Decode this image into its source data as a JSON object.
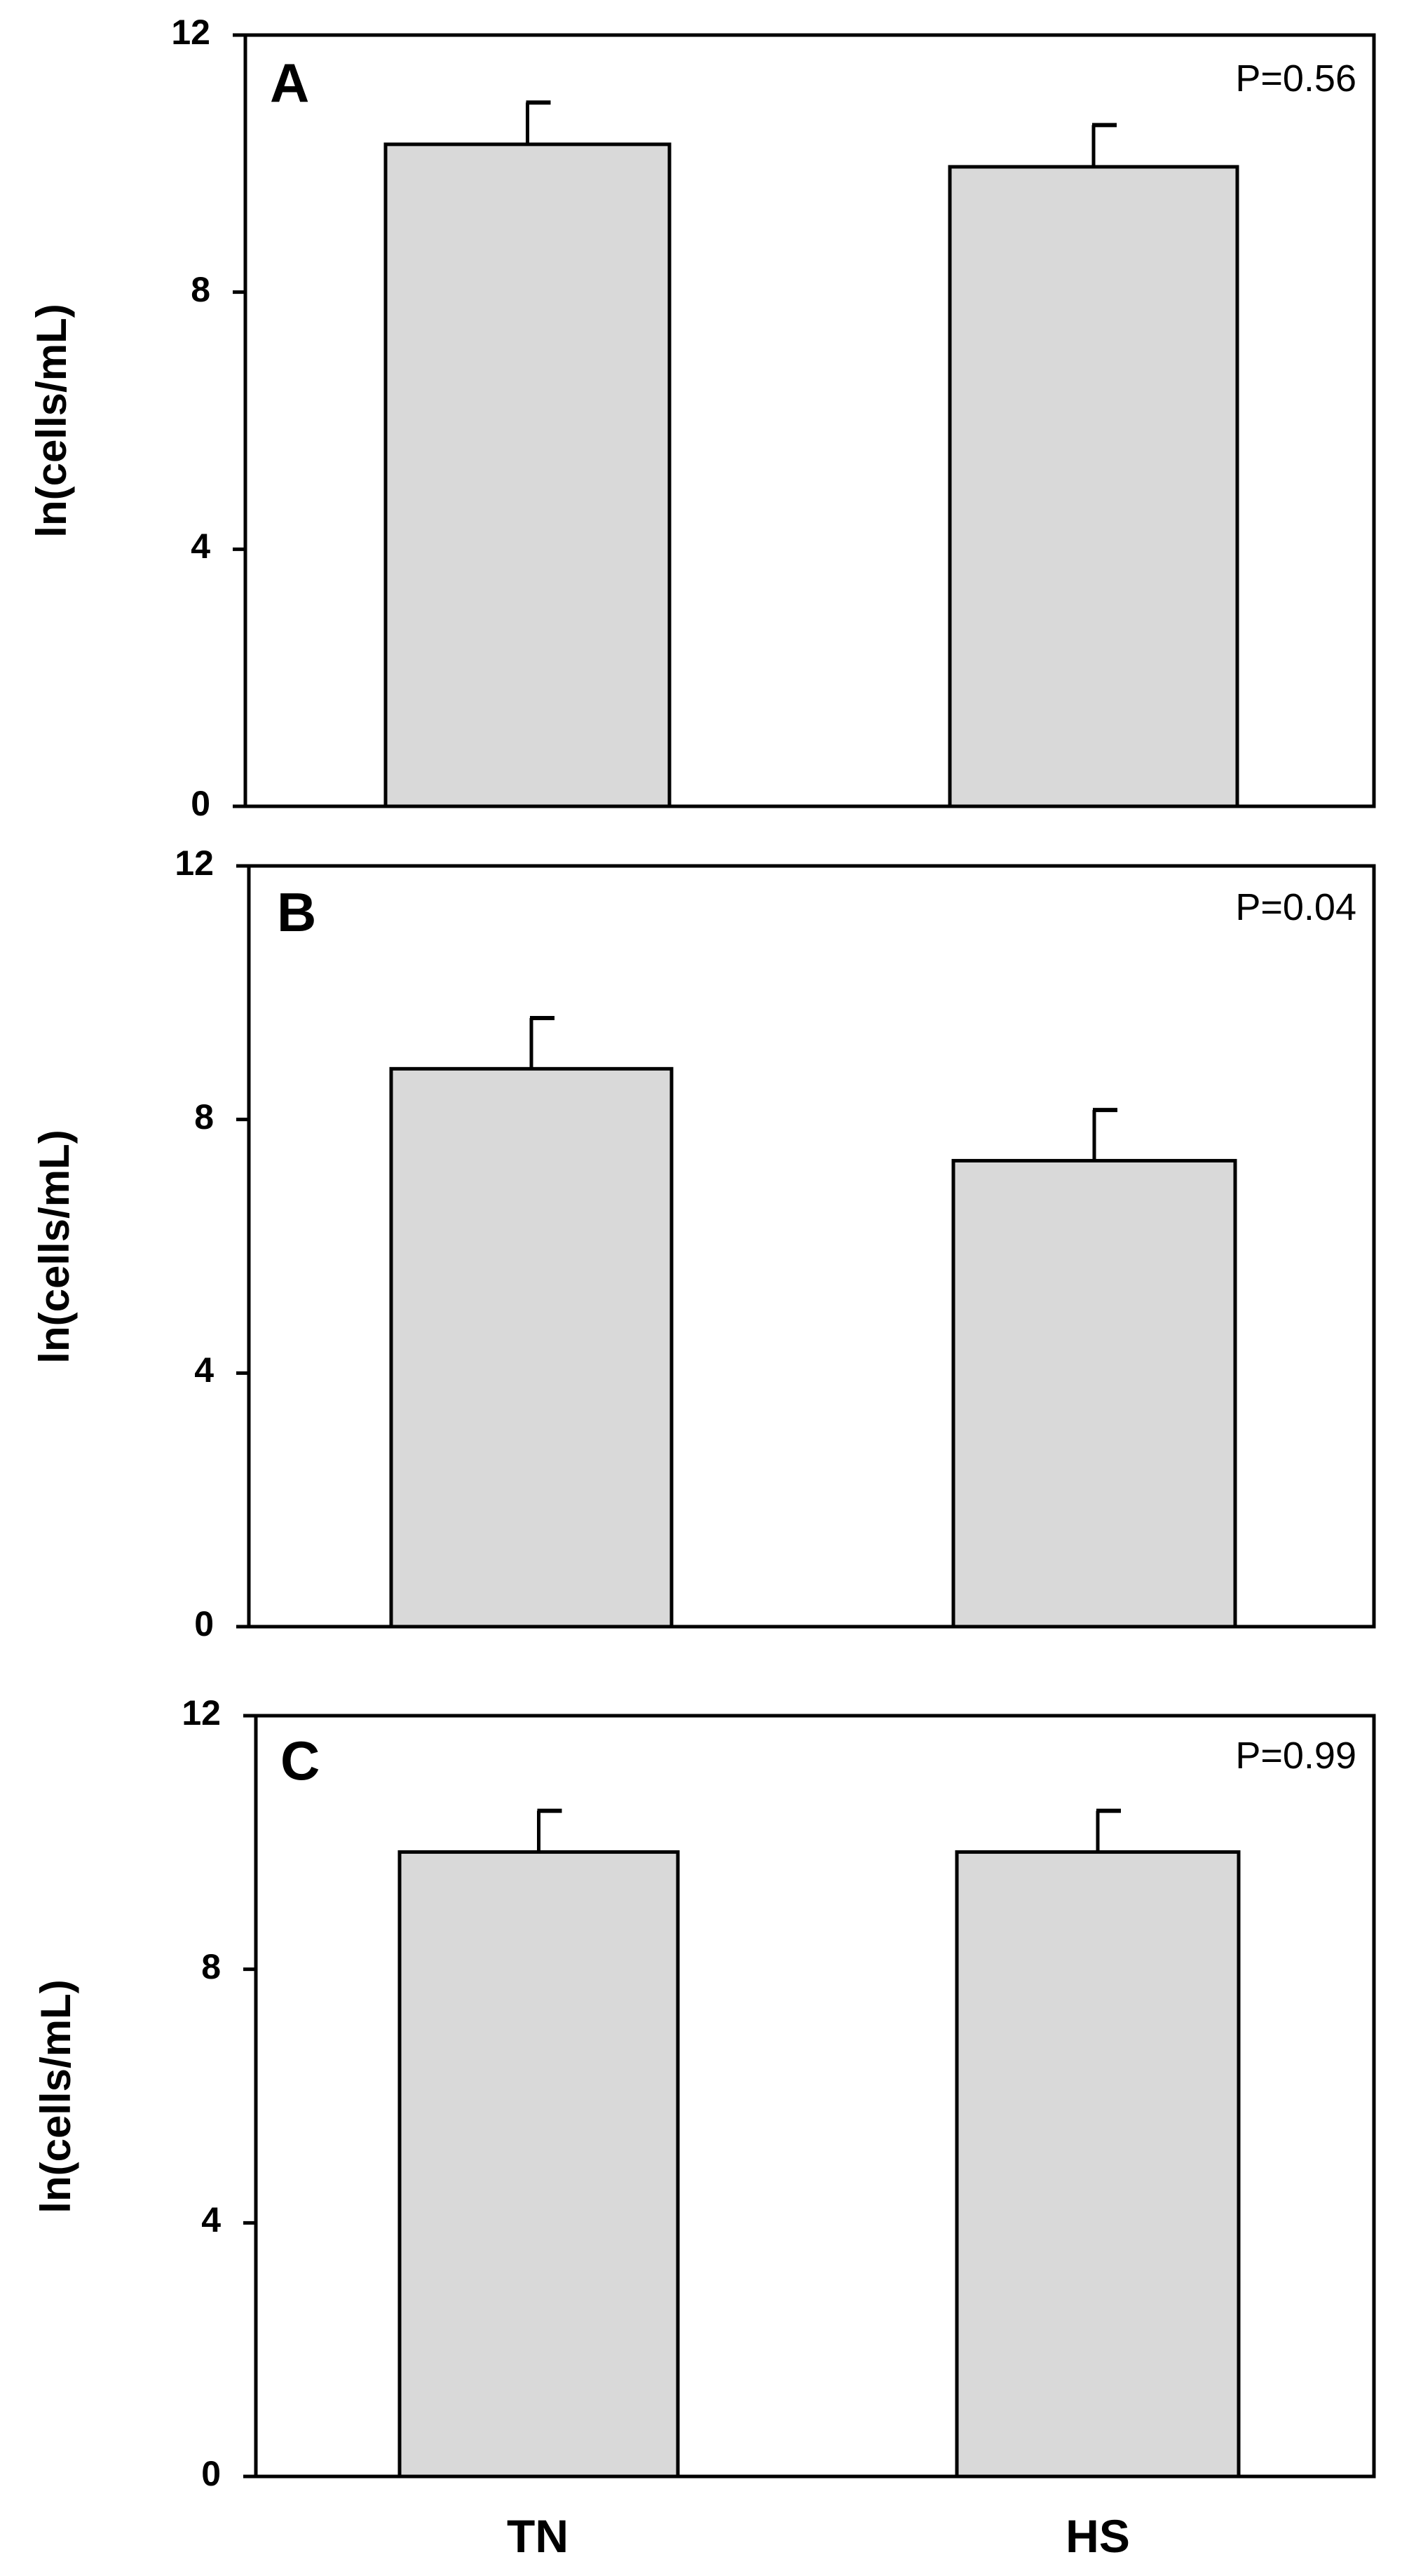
{
  "chart_data": [
    {
      "type": "bar",
      "panel_label": "A",
      "annotation": "P=0.56",
      "categories": [
        "TN",
        "HS"
      ],
      "values": [
        10.3,
        9.95
      ],
      "error": [
        0.65,
        0.65
      ],
      "ylabel": "ln(cells/mL)",
      "ylim": [
        0,
        12
      ],
      "yticks": [
        "0",
        "4",
        "8",
        "12"
      ],
      "bar_color": "#d9d9d9"
    },
    {
      "type": "bar",
      "panel_label": "B",
      "annotation": "P=0.04",
      "categories": [
        "TN",
        "HS"
      ],
      "values": [
        8.8,
        7.35
      ],
      "error": [
        0.8,
        0.8
      ],
      "ylabel": "ln(cells/mL)",
      "ylim": [
        0,
        12
      ],
      "yticks": [
        "0",
        "4",
        "8",
        "12"
      ],
      "bar_color": "#d9d9d9"
    },
    {
      "type": "bar",
      "panel_label": "C",
      "annotation": "P=0.99",
      "categories": [
        "TN",
        "HS"
      ],
      "values": [
        9.85,
        9.85
      ],
      "error": [
        0.65,
        0.65
      ],
      "ylabel": "ln(cells/mL)",
      "ylim": [
        0,
        12
      ],
      "yticks": [
        "0",
        "4",
        "8",
        "12"
      ],
      "bar_color": "#d9d9d9"
    }
  ],
  "x_categories": [
    "TN",
    "HS"
  ]
}
